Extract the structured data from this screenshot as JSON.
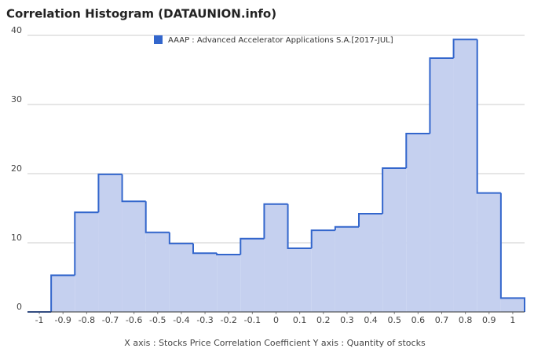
{
  "chart_data": {
    "type": "histogram",
    "title": "Correlation Histogram (DATAUNION.info)",
    "xlabel": "X axis : Stocks Price Correlation Coefficient  Y axis : Quantity of stocks",
    "series": [
      {
        "name": "AAAP : Advanced Accelerator Applications S.A.[2017-JUL]",
        "color": "#3366cc",
        "fill": "#c5d0ef",
        "bins": [
          -1.05,
          -0.95,
          -0.85,
          -0.75,
          -0.65,
          -0.55,
          -0.45,
          -0.35,
          -0.25,
          -0.15,
          -0.05,
          0.05,
          0.15,
          0.25,
          0.35,
          0.45,
          0.55,
          0.65,
          0.75,
          0.85,
          0.95,
          1.05
        ],
        "values": [
          0,
          5.3,
          14.4,
          19.9,
          16.0,
          11.5,
          9.9,
          8.5,
          8.3,
          10.6,
          15.6,
          9.2,
          11.8,
          12.3,
          14.2,
          20.8,
          25.8,
          36.7,
          39.4,
          17.2,
          2.0
        ]
      }
    ],
    "xlim": [
      -1.05,
      1.05
    ],
    "xticks": [
      -1,
      -0.9,
      -0.8,
      -0.7,
      -0.6,
      -0.5,
      -0.4,
      -0.3,
      -0.2,
      -0.1,
      0,
      0.1,
      0.2,
      0.3,
      0.4,
      0.5,
      0.6,
      0.7,
      0.8,
      0.9,
      1
    ],
    "ylim": [
      0,
      40
    ],
    "yticks": [
      0,
      10,
      20,
      30,
      40
    ],
    "grid": true
  }
}
